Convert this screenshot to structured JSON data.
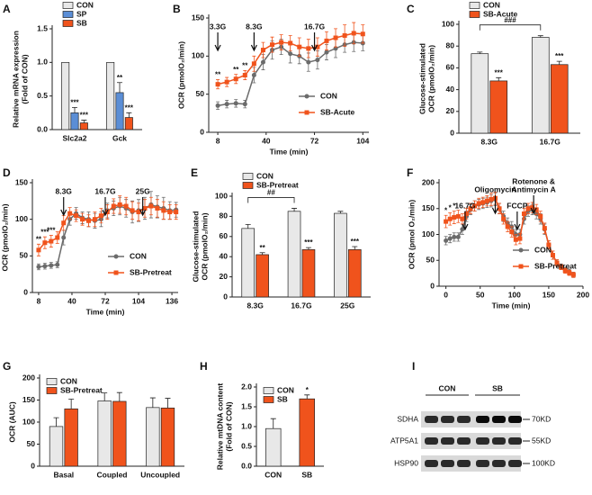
{
  "chart_data": [
    {
      "panel": "A",
      "type": "bar",
      "y_label": [
        "Relative mRNA expression",
        "(Fold of CON)"
      ],
      "categories": [
        "Slc2a2",
        "Gck"
      ],
      "series": [
        {
          "name": "CON",
          "color": "#e8e8e8",
          "values": [
            1,
            1
          ]
        },
        {
          "name": "SP",
          "color": "#5b8ed6",
          "values": [
            0.25,
            0.55
          ],
          "errors": [
            0.08,
            0.15
          ],
          "significance": [
            "***",
            "**"
          ]
        },
        {
          "name": "SB",
          "color": "#f0531c",
          "values": [
            0.1,
            0.18
          ],
          "errors": [
            0.04,
            0.07
          ],
          "significance": [
            "***",
            "***"
          ]
        }
      ],
      "ylim": [
        0,
        1.5
      ],
      "yticks": [
        {
          "value": 0,
          "label": "0.0"
        },
        {
          "value": 0.5,
          "label": "0.5"
        },
        {
          "value": 1,
          "label": "1.0"
        },
        {
          "value": 1.5,
          "label": "1.5"
        }
      ],
      "legend": "top"
    },
    {
      "panel": "B",
      "type": "line",
      "y_label": "OCR (pmolO₂/min)",
      "x_label": "Time (min)",
      "x": [
        8,
        14,
        20,
        26,
        32,
        38,
        44,
        50,
        56,
        62,
        68,
        74,
        80,
        86,
        92,
        98,
        104
      ],
      "series": [
        {
          "name": "CON",
          "color": "#6b6b6b",
          "marker": "circle",
          "values": [
            35,
            37,
            38,
            37,
            75,
            92,
            108,
            112,
            103,
            100,
            92,
            95,
            105,
            110,
            115,
            118,
            117
          ],
          "errors": [
            5,
            5,
            5,
            5,
            10,
            10,
            12,
            10,
            12,
            10,
            12,
            12,
            10,
            12,
            10,
            12,
            10
          ]
        },
        {
          "name": "SB-Acute",
          "color": "#f0531c",
          "marker": "square",
          "values": [
            63,
            66,
            70,
            75,
            90,
            108,
            115,
            118,
            117,
            112,
            110,
            112,
            120,
            124,
            127,
            130,
            129
          ],
          "errors": [
            6,
            6,
            6,
            6,
            10,
            10,
            10,
            10,
            10,
            12,
            12,
            12,
            12,
            12,
            14,
            14,
            12
          ],
          "significance": [
            "**",
            null,
            "**",
            "**",
            null,
            null,
            null,
            null,
            null,
            null,
            null,
            null,
            null,
            null,
            null,
            null,
            null
          ]
        }
      ],
      "events": [
        {
          "x": 8,
          "label": "3.3G"
        },
        {
          "x": 32,
          "label": "8.3G"
        },
        {
          "x": 72,
          "label": "16.7G"
        }
      ],
      "xlim": [
        2,
        108
      ],
      "xticks": [
        8,
        40,
        72,
        104
      ],
      "ylim": [
        0,
        150
      ],
      "yticks": [
        0,
        50,
        100,
        150
      ],
      "legend": "lower right"
    },
    {
      "panel": "C",
      "type": "bar",
      "y_label": [
        "Glucose-stimulated",
        "OCR (pmolO₂/min)"
      ],
      "categories": [
        "8.3G",
        "16.7G"
      ],
      "series": [
        {
          "name": "CON",
          "color": "#e8e8e8",
          "values": [
            73,
            88
          ],
          "errors": [
            1.5,
            1.5
          ]
        },
        {
          "name": "SB-Acute",
          "color": "#f0531c",
          "values": [
            48,
            63
          ],
          "errors": [
            3,
            3
          ],
          "significance": [
            "***",
            "***"
          ]
        }
      ],
      "bracket": "###",
      "ylim": [
        0,
        100
      ],
      "yticks": [
        0,
        20,
        40,
        60,
        80,
        100
      ],
      "legend": "top"
    },
    {
      "panel": "D",
      "type": "line",
      "y_label": "OCR (pmolO₂/min)",
      "x_label": "Time (min)",
      "x": [
        8,
        14,
        20,
        26,
        32,
        38,
        44,
        50,
        56,
        62,
        68,
        74,
        80,
        86,
        92,
        98,
        104,
        110,
        116,
        122,
        128,
        134,
        140
      ],
      "series": [
        {
          "name": "CON",
          "color": "#6b6b6b",
          "marker": "circle",
          "values": [
            35,
            36,
            37,
            38,
            75,
            100,
            108,
            102,
            100,
            98,
            100,
            112,
            115,
            118,
            115,
            110,
            112,
            115,
            120,
            117,
            115,
            112,
            113
          ],
          "errors": [
            4,
            4,
            4,
            4,
            10,
            8,
            8,
            8,
            10,
            10,
            10,
            10,
            10,
            12,
            12,
            15,
            15,
            15,
            18,
            15,
            15,
            12,
            10
          ]
        },
        {
          "name": "SB-Pretreat",
          "color": "#f0531c",
          "marker": "square",
          "values": [
            58,
            68,
            70,
            75,
            95,
            108,
            105,
            100,
            98,
            100,
            105,
            110,
            118,
            120,
            118,
            112,
            110,
            115,
            118,
            115,
            112,
            110,
            110
          ],
          "errors": [
            8,
            8,
            8,
            8,
            10,
            8,
            8,
            8,
            8,
            10,
            10,
            10,
            10,
            12,
            12,
            12,
            12,
            12,
            12,
            12,
            12,
            10,
            10
          ],
          "significance": [
            "**",
            "***",
            "***",
            null,
            null,
            null,
            null,
            null,
            null,
            null,
            null,
            null,
            null,
            null,
            null,
            null,
            null,
            null,
            null,
            null,
            null,
            null,
            null
          ]
        }
      ],
      "events": [
        {
          "x": 32,
          "label": "8.3G"
        },
        {
          "x": 72,
          "label": "16.7G"
        },
        {
          "x": 108,
          "label": "25G"
        }
      ],
      "xlim": [
        2,
        142
      ],
      "xticks": [
        8,
        40,
        72,
        104,
        136
      ],
      "ylim": [
        0,
        150
      ],
      "yticks": [
        0,
        50,
        100,
        150
      ],
      "legend": "lower right"
    },
    {
      "panel": "E",
      "type": "bar",
      "y_label": [
        "Glucose-stimulated",
        "OCR (pmolO₂/min)"
      ],
      "categories": [
        "8.3G",
        "16.7G",
        "25G"
      ],
      "series": [
        {
          "name": "CON",
          "color": "#e8e8e8",
          "values": [
            68,
            85,
            83
          ],
          "errors": [
            4,
            3,
            2
          ]
        },
        {
          "name": "SB-Pretreat",
          "color": "#f0531c",
          "values": [
            42,
            47,
            47
          ],
          "errors": [
            2,
            2,
            3
          ],
          "significance": [
            "**",
            "***",
            "***"
          ]
        }
      ],
      "bracket": "##",
      "ylim": [
        0,
        100
      ],
      "yticks": [
        0,
        20,
        40,
        60,
        80,
        100
      ],
      "legend": "top"
    },
    {
      "panel": "F",
      "type": "line",
      "y_label": "OCR (pmol O₂/min)",
      "x_label": "Time (min)",
      "x": [
        0,
        6,
        12,
        18,
        24,
        30,
        36,
        42,
        48,
        54,
        60,
        66,
        72,
        78,
        84,
        90,
        96,
        102,
        108,
        114,
        120,
        126,
        132,
        138,
        144,
        150,
        156,
        162,
        168,
        174,
        180,
        186
      ],
      "series": [
        {
          "name": "CON",
          "color": "#6b6b6b",
          "marker": "circle",
          "values": [
            88,
            92,
            95,
            95,
            110,
            135,
            148,
            155,
            158,
            160,
            162,
            165,
            168,
            150,
            135,
            122,
            115,
            100,
            100,
            130,
            145,
            148,
            140,
            130,
            110,
            80,
            60,
            45,
            38,
            32,
            28,
            22
          ],
          "errors": [
            8,
            8,
            8,
            8,
            10,
            10,
            10,
            10,
            10,
            10,
            10,
            12,
            12,
            10,
            10,
            10,
            10,
            10,
            10,
            10,
            10,
            10,
            10,
            10,
            10,
            8,
            8,
            6,
            5,
            5,
            5,
            5
          ]
        },
        {
          "name": "SB-Pretreat",
          "color": "#f0531c",
          "marker": "square",
          "values": [
            125,
            130,
            133,
            135,
            130,
            140,
            150,
            155,
            160,
            162,
            165,
            168,
            170,
            150,
            130,
            115,
            105,
            90,
            92,
            140,
            150,
            152,
            148,
            135,
            112,
            80,
            60,
            45,
            37,
            30,
            26,
            22
          ],
          "errors": [
            12,
            12,
            12,
            12,
            10,
            10,
            10,
            10,
            10,
            10,
            10,
            12,
            12,
            10,
            10,
            10,
            10,
            10,
            10,
            10,
            10,
            10,
            10,
            10,
            10,
            8,
            8,
            6,
            5,
            5,
            5,
            5
          ],
          "significance": [
            "*",
            "*",
            "*",
            null,
            null,
            null,
            null,
            null,
            null,
            null,
            null,
            null,
            null,
            null,
            null,
            null,
            null,
            null,
            null,
            null,
            null,
            null,
            null,
            null,
            null,
            null,
            null,
            null,
            null,
            null,
            null,
            null
          ]
        }
      ],
      "events": [
        {
          "x": 28,
          "label": "16.7G"
        },
        {
          "x": 72,
          "label": "Oligomycin"
        },
        {
          "x": 104,
          "label": "FCCP"
        },
        {
          "x": 128,
          "label": [
            "Rotenone &",
            "Antimycin A"
          ]
        }
      ],
      "xlim": [
        -10,
        200
      ],
      "xticks": [
        0,
        50,
        100,
        150,
        200
      ],
      "ylim": [
        0,
        200
      ],
      "yticks": [
        0,
        50,
        100,
        150,
        200
      ],
      "legend": "lower right"
    },
    {
      "panel": "G",
      "type": "bar",
      "y_label": "OCR (AUC)",
      "categories": [
        "Basal",
        "Coupled",
        "Uncoupled"
      ],
      "series": [
        {
          "name": "CON",
          "color": "#e8e8e8",
          "values": [
            90,
            148,
            133
          ],
          "errors": [
            20,
            18,
            22
          ]
        },
        {
          "name": "SB-Pretreat",
          "color": "#f0531c",
          "values": [
            130,
            147,
            132
          ],
          "errors": [
            22,
            20,
            22
          ]
        }
      ],
      "ylim": [
        0,
        200
      ],
      "yticks": [
        0,
        50,
        100,
        150,
        200
      ],
      "legend": "upper left"
    },
    {
      "panel": "H",
      "type": "bar",
      "y_label": [
        "Relative mtDNA content",
        "(Fold of CON)"
      ],
      "categories": [
        "CON",
        "SB"
      ],
      "values": [
        0.95,
        1.7
      ],
      "errors": [
        0.25,
        0.1
      ],
      "colors": [
        "#e8e8e8",
        "#f0531c"
      ],
      "significance": [
        null,
        "*"
      ],
      "ylim": [
        0,
        2
      ],
      "yticks": [
        {
          "value": 0,
          "label": "0.0"
        },
        {
          "value": 0.5,
          "label": "0.5"
        },
        {
          "value": 1,
          "label": "1.0"
        },
        {
          "value": 1.5,
          "label": "1.5"
        },
        {
          "value": 2,
          "label": "2.0"
        }
      ],
      "legend": "upper left"
    }
  ],
  "blot": {
    "panel": "I",
    "groups": [
      "CON",
      "SB"
    ],
    "rows": [
      {
        "protein": "SDHA",
        "size": "70KD"
      },
      {
        "protein": "ATP5A1",
        "size": "55KD"
      },
      {
        "protein": "HSP90",
        "size": "100KD"
      }
    ]
  }
}
